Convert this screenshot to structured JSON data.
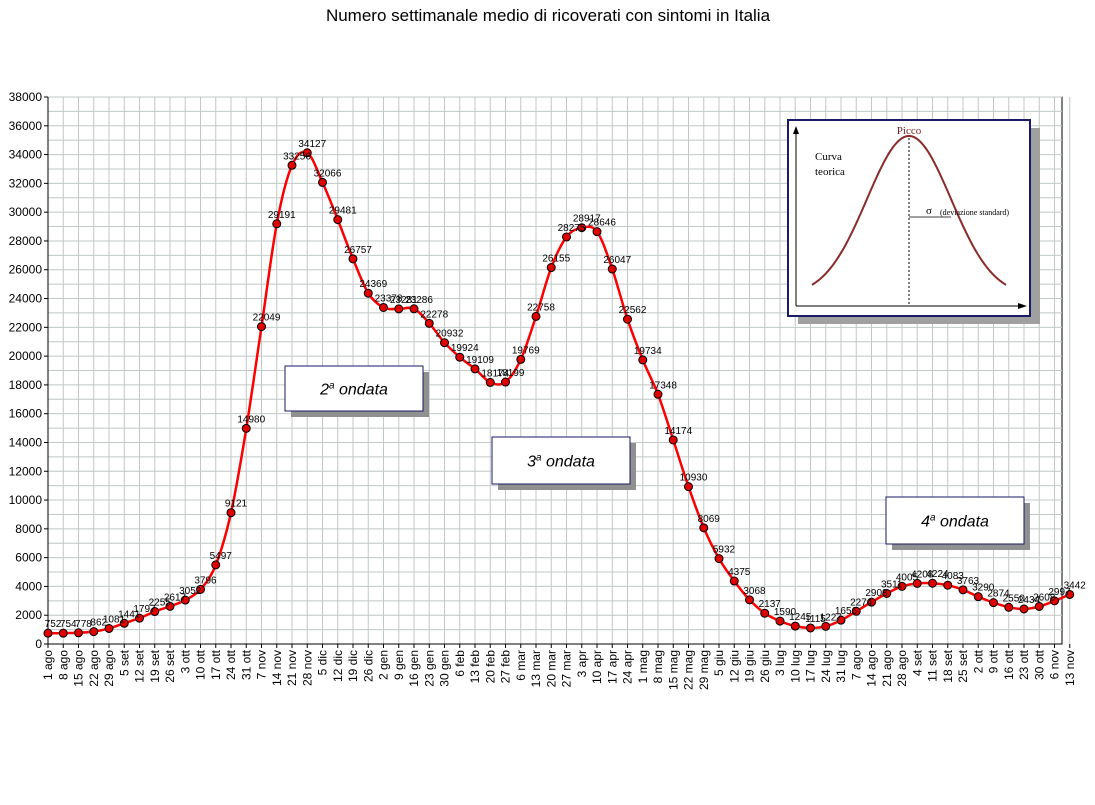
{
  "colors": {
    "line": "#ff0000",
    "marker_fill": "#e00000",
    "marker_stroke": "#000000",
    "grid": "#c0c8c8",
    "inset_curve": "#8b2a2a",
    "inset_border": "#1a1a66"
  },
  "chart_data": {
    "type": "line",
    "title": "Numero settimanale medio di ricoverati con sintomi in Italia",
    "xlabel": "",
    "ylabel": "",
    "ylim": [
      0,
      38000
    ],
    "y_ticks": [
      0,
      2000,
      4000,
      6000,
      8000,
      10000,
      12000,
      14000,
      16000,
      18000,
      20000,
      22000,
      24000,
      26000,
      28000,
      30000,
      32000,
      34000,
      36000,
      38000
    ],
    "grid": true,
    "categories": [
      "1 ago",
      "8 ago",
      "15 ago",
      "22 ago",
      "29 ago",
      "5 set",
      "12 set",
      "19 set",
      "26 set",
      "3 ott",
      "10 ott",
      "17 ott",
      "24 ott",
      "31 ott",
      "7 nov",
      "14 nov",
      "21 nov",
      "28 nov",
      "5 dic",
      "12 dic",
      "19 dic",
      "26 dic",
      "2 gen",
      "9 gen",
      "16 gen",
      "23 gen",
      "30 gen",
      "6 feb",
      "13 feb",
      "20 feb",
      "27 feb",
      "6 mar",
      "13 mar",
      "20 mar",
      "27 mar",
      "3 apr",
      "10 apr",
      "17 apr",
      "24 apr",
      "1 mag",
      "8 mag",
      "15 mag",
      "22 mag",
      "29 mag",
      "5 giu",
      "12 giu",
      "19 giu",
      "26 giu",
      "3 lug",
      "10 lug",
      "17 lug",
      "24 lug",
      "31 lug",
      "7 ago",
      "14 ago",
      "21 ago",
      "28 ago",
      "4 set",
      "11 set",
      "18 set",
      "25 set",
      "2 ott",
      "9 ott",
      "16 ott",
      "23 ott",
      "30 ott",
      "6 nov",
      "13 nov"
    ],
    "series": [
      {
        "values": [
          752,
          754,
          778,
          862,
          1081,
          1441,
          1797,
          2255,
          2617,
          3052,
          3796,
          5497,
          9121,
          14980,
          22049,
          29191,
          33256,
          34127,
          32066,
          29481,
          26757,
          24369,
          23378,
          23281,
          23286,
          22278,
          20932,
          19924,
          19109,
          18174,
          18199,
          19769,
          22758,
          26155,
          28275,
          28917,
          28646,
          26047,
          22562,
          19734,
          17348,
          14174,
          10930,
          8069,
          5932,
          4375,
          3068,
          2137,
          1590,
          1245,
          1115,
          1227,
          1656,
          2274,
          2908,
          3511,
          4005,
          4208,
          4224,
          4083,
          3763,
          3290,
          2874,
          2550,
          2434,
          2608,
          2997,
          3442
        ],
        "labels": [
          "752",
          "754",
          "778",
          "862",
          "1081",
          "1441",
          "1797",
          "2255",
          "2617",
          "3052",
          "3796",
          "5497",
          "9121",
          "14980",
          "22049",
          "29191",
          "33256",
          "34127",
          "32066",
          "29481",
          "26757",
          "24369",
          "23378",
          "23281",
          "23286",
          "22278",
          "20932",
          "19924",
          "19109",
          "18174",
          "18199",
          "19769",
          "22758",
          "26155",
          "28275",
          "28917",
          "28646",
          "26047",
          "22562",
          "19734",
          "17348",
          "14174",
          "10930",
          "8069",
          "5932",
          "4375",
          "3068",
          "2137",
          "1590",
          "1245",
          "1115",
          "1227",
          "1656",
          "2274",
          "2908",
          "3511",
          "4005",
          "4208",
          "4224",
          "4083",
          "3763",
          "3290",
          "2874",
          "2550",
          "2434",
          "2608",
          "2997",
          "3442"
        ]
      }
    ],
    "annotations": [
      {
        "main": "2",
        "sup": "a",
        "rest": " ondata"
      },
      {
        "main": "3",
        "sup": "a",
        "rest": " ondata"
      },
      {
        "main": "4",
        "sup": "a",
        "rest": " ondata"
      }
    ],
    "inset": {
      "curve_label_1": "Curva",
      "curve_label_2": "teorica",
      "peak_label": "Picco",
      "sigma_symbol": "σ",
      "sigma_label": "(deviazione standard)"
    }
  }
}
